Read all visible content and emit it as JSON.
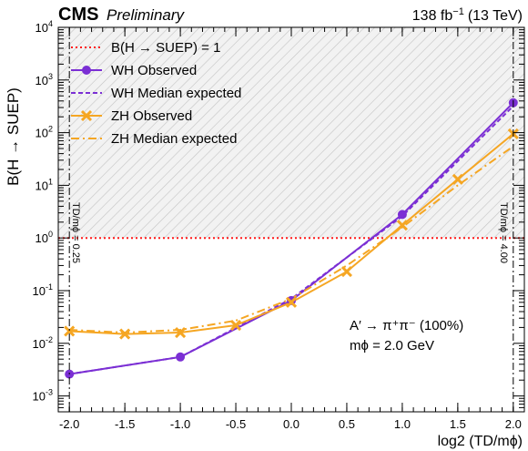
{
  "header": {
    "experiment": "CMS",
    "status": "Preliminary",
    "lumi": "138 fb",
    "lumi_exp": "−1",
    "energy": "(13 TeV)"
  },
  "colors": {
    "wh": "#7b2fd4",
    "zh": "#f5a623",
    "ref": "#ff1a1a",
    "hatch": "#bdbdbd"
  },
  "chart_data": {
    "type": "line",
    "title": "",
    "xlabel": "log2 (TD/mϕ)",
    "ylabel": "B(H → SUEP)",
    "xlim": [
      -2.1,
      2.1
    ],
    "ylim": [
      0.0005,
      10000
    ],
    "yscale": "log",
    "grid": false,
    "legend_placement": "top-left",
    "x": [
      -2.0,
      -1.5,
      -1.0,
      -0.5,
      0.0,
      0.5,
      1.0,
      1.5,
      2.0
    ],
    "xtick_labels": [
      "-2.0",
      "-1.5",
      "-1.0",
      "-0.5",
      "0.0",
      "0.5",
      "1.0",
      "1.5",
      "2.0"
    ],
    "ytick_labels": [
      {
        "base": "10",
        "exp": "-3"
      },
      {
        "base": "10",
        "exp": "-2"
      },
      {
        "base": "10",
        "exp": "-1"
      },
      {
        "base": "10",
        "exp": "0"
      },
      {
        "base": "10",
        "exp": "1"
      },
      {
        "base": "10",
        "exp": "2"
      },
      {
        "base": "10",
        "exp": "3"
      },
      {
        "base": "10",
        "exp": "4"
      }
    ],
    "excluded_region": {
      "ymin": 1,
      "ymax": 10000,
      "style": "hatched gray"
    },
    "series": [
      {
        "name": "B(H → SUEP) = 1",
        "style": "dotted",
        "color": "#ff1a1a",
        "x": [
          -2.1,
          2.1
        ],
        "y": [
          1,
          1
        ]
      },
      {
        "name": "WH Observed",
        "style": "solid-circle",
        "color": "#7b2fd4",
        "x": [
          -2.0,
          -1.0,
          0.0,
          1.0,
          2.0
        ],
        "y": [
          0.0026,
          0.0055,
          0.065,
          2.8,
          370
        ]
      },
      {
        "name": "WH Median expected",
        "style": "dashed",
        "color": "#7b2fd4",
        "x": [
          -2.0,
          -1.0,
          0.0,
          1.0,
          2.0
        ],
        "y": [
          0.0026,
          0.0055,
          0.07,
          2.6,
          320
        ]
      },
      {
        "name": "ZH Observed",
        "style": "solid-x",
        "color": "#f5a623",
        "x": [
          -2.0,
          -1.5,
          -1.0,
          -0.5,
          0.0,
          0.5,
          1.0,
          1.5,
          2.0
        ],
        "y": [
          0.017,
          0.015,
          0.016,
          0.022,
          0.06,
          0.23,
          1.75,
          13,
          95
        ]
      },
      {
        "name": "ZH Median expected",
        "style": "dashdot",
        "color": "#f5a623",
        "x": [
          -2.0,
          -1.5,
          -1.0,
          -0.5,
          0.0,
          0.5,
          1.0,
          1.5,
          2.0
        ],
        "y": [
          0.018,
          0.016,
          0.018,
          0.027,
          0.07,
          0.3,
          1.6,
          10,
          55
        ]
      }
    ],
    "boundaries": [
      {
        "x": -2.0,
        "label": "TD/mϕ = 0.25"
      },
      {
        "x": 2.0,
        "label": "TD/mϕ = 4.00"
      }
    ],
    "annotations": [
      "A′ → π⁺π⁻ (100%)",
      "mϕ = 2.0 GeV"
    ]
  }
}
